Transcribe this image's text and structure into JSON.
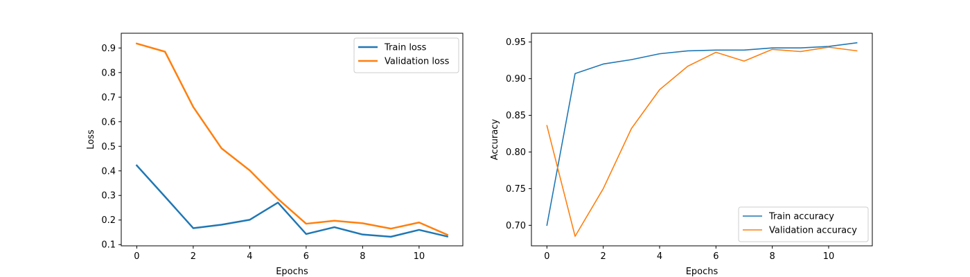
{
  "chart_data": [
    {
      "type": "line",
      "title": "",
      "xlabel": "Epochs",
      "ylabel": "Loss",
      "xlim": [
        -0.55,
        11.55
      ],
      "ylim": [
        0.095,
        0.96
      ],
      "xticks": [
        0,
        2,
        4,
        6,
        8,
        10
      ],
      "yticks": [
        0.1,
        0.2,
        0.3,
        0.4,
        0.5,
        0.6,
        0.7,
        0.8,
        0.9
      ],
      "ytick_labels": [
        "0.1",
        "0.2",
        "0.3",
        "0.4",
        "0.5",
        "0.6",
        "0.7",
        "0.8",
        "0.9"
      ],
      "x": [
        0,
        1,
        2,
        3,
        4,
        5,
        6,
        7,
        8,
        9,
        10,
        11
      ],
      "legend": "upper right",
      "grid": false,
      "series": [
        {
          "name": "Train loss",
          "color": "#1f77b4",
          "values": [
            0.422,
            0.295,
            0.167,
            0.181,
            0.201,
            0.271,
            0.143,
            0.171,
            0.141,
            0.132,
            0.16,
            0.133
          ]
        },
        {
          "name": "Validation loss",
          "color": "#ff7f0e",
          "values": [
            0.918,
            0.885,
            0.66,
            0.492,
            0.402,
            0.286,
            0.185,
            0.197,
            0.187,
            0.165,
            0.19,
            0.14
          ]
        }
      ]
    },
    {
      "type": "line",
      "title": "",
      "xlabel": "Epochs",
      "ylabel": "Accuracy",
      "xlim": [
        -0.55,
        11.55
      ],
      "ylim": [
        0.672,
        0.962
      ],
      "xticks": [
        0,
        2,
        4,
        6,
        8,
        10
      ],
      "yticks": [
        0.7,
        0.75,
        0.8,
        0.85,
        0.9,
        0.95
      ],
      "ytick_labels": [
        "0.70",
        "0.75",
        "0.80",
        "0.85",
        "0.90",
        "0.95"
      ],
      "x": [
        0,
        1,
        2,
        3,
        4,
        5,
        6,
        7,
        8,
        9,
        10,
        11
      ],
      "legend": "lower right",
      "grid": false,
      "series": [
        {
          "name": "Train accuracy",
          "color": "#1f77b4",
          "values": [
            0.7,
            0.907,
            0.92,
            0.926,
            0.934,
            0.938,
            0.939,
            0.939,
            0.942,
            0.942,
            0.944,
            0.949
          ]
        },
        {
          "name": "Validation accuracy",
          "color": "#ff7f0e",
          "values": [
            0.836,
            0.685,
            0.75,
            0.832,
            0.885,
            0.917,
            0.936,
            0.924,
            0.94,
            0.937,
            0.943,
            0.938
          ]
        }
      ]
    }
  ]
}
